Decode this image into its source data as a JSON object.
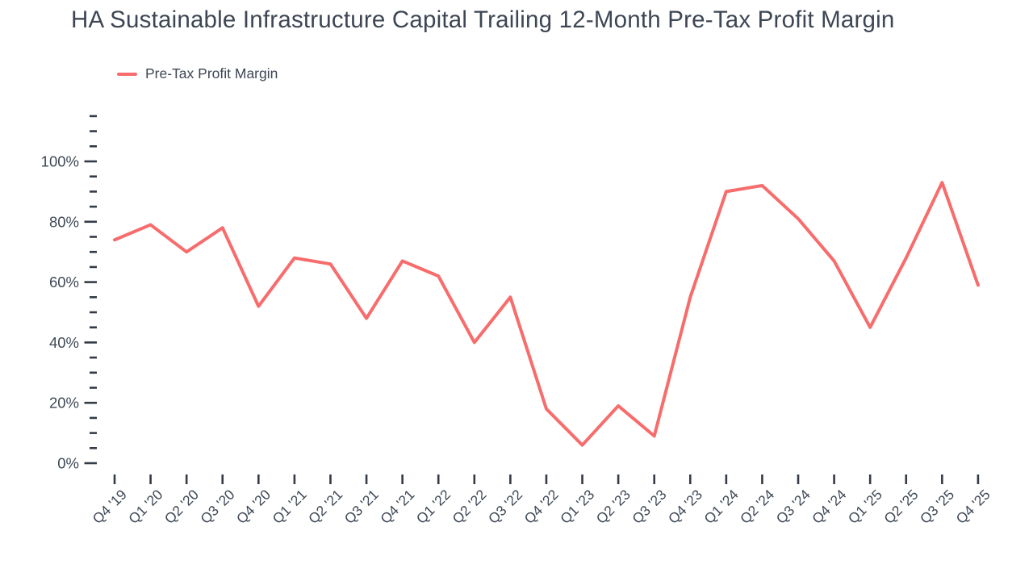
{
  "title": "HA Sustainable Infrastructure Capital Trailing 12-Month Pre-Tax Profit Margin",
  "legend": {
    "label": "Pre-Tax Profit Margin"
  },
  "colors": {
    "line": "#f76c6c",
    "title_text": "#3d4654",
    "axis_text": "#3e4856",
    "tick_mark": "#333b47",
    "background": "#ffffff"
  },
  "chart_data": {
    "type": "line",
    "title": "HA Sustainable Infrastructure Capital Trailing 12-Month Pre-Tax Profit Margin",
    "xlabel": "",
    "ylabel": "",
    "y_tick_format": "percent",
    "ylim": [
      0,
      115
    ],
    "y_major_step": 20,
    "y_minor_step": 5,
    "grid": false,
    "legend_position": "top-left",
    "categories": [
      "Q4 '19",
      "Q1 '20",
      "Q2 '20",
      "Q3 '20",
      "Q4 '20",
      "Q1 '21",
      "Q2 '21",
      "Q3 '21",
      "Q4 '21",
      "Q1 '22",
      "Q2 '22",
      "Q3 '22",
      "Q4 '22",
      "Q1 '23",
      "Q2 '23",
      "Q3 '23",
      "Q4 '23",
      "Q1 '24",
      "Q2 '24",
      "Q3 '24",
      "Q4 '24",
      "Q1 '25",
      "Q2 '25",
      "Q3 '25",
      "Q4 '25"
    ],
    "series": [
      {
        "name": "Pre-Tax Profit Margin",
        "color": "#f76c6c",
        "values": [
          74,
          79,
          70,
          78,
          52,
          68,
          66,
          48,
          67,
          62,
          40,
          55,
          18,
          6,
          19,
          9,
          55,
          90,
          92,
          81,
          67,
          45,
          68,
          93,
          59
        ]
      }
    ]
  }
}
